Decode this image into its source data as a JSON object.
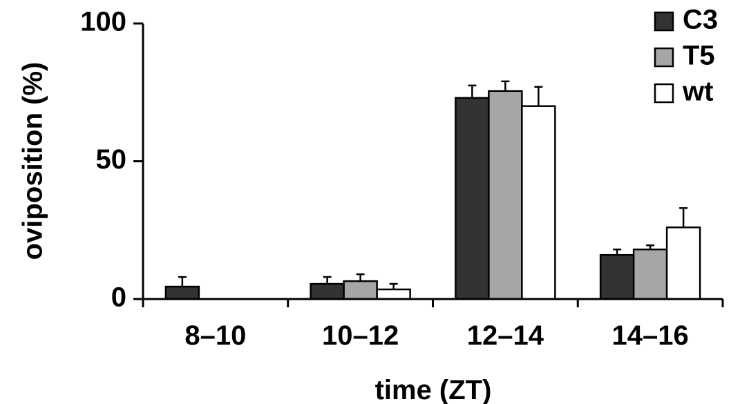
{
  "chart_data": {
    "type": "bar",
    "title": "",
    "xlabel": "time (ZT)",
    "ylabel": "oviposition (%)",
    "ylim": [
      0,
      100
    ],
    "yticks": [
      "0",
      "50",
      "100"
    ],
    "categories": [
      "8–10",
      "10–12",
      "12–14",
      "14–16"
    ],
    "series": [
      {
        "name": "C3",
        "color": "#333333",
        "values": [
          4.5,
          5.5,
          73,
          16
        ],
        "errors": [
          3.5,
          2.5,
          4.5,
          2
        ]
      },
      {
        "name": "T5",
        "color": "#a6a6a6",
        "values": [
          0,
          6.5,
          75.5,
          18
        ],
        "errors": [
          0,
          2.5,
          3.5,
          1.5
        ]
      },
      {
        "name": "wt",
        "color": "#ffffff",
        "values": [
          0,
          3.5,
          70,
          26
        ],
        "errors": [
          0,
          2,
          7,
          7
        ]
      }
    ],
    "legend_position": "top-right",
    "grid": false
  }
}
